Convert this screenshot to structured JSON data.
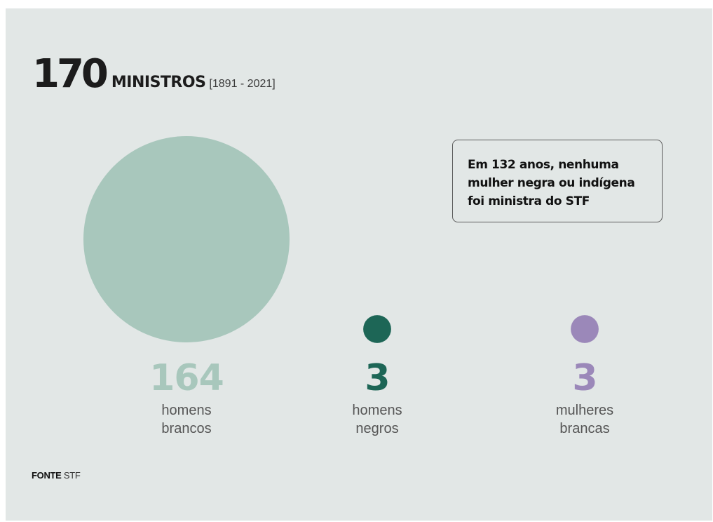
{
  "header": {
    "total": "170",
    "word": "MINISTROS",
    "period": "[1891 - 2021]"
  },
  "note": "Em 132 anos, nenhuma\nmulher negra ou indígena\nfoi ministra do STF",
  "source": {
    "label": "FONTE",
    "value": "STF"
  },
  "chart_data": {
    "type": "bubble",
    "title": "170 MINISTROS [1891 - 2021]",
    "total": 170,
    "categories": [
      "homens brancos",
      "homens negros",
      "mulheres brancas"
    ],
    "series": [
      {
        "label": "homens\nbrancos",
        "value": 164,
        "display": "164",
        "color": "#a8c7bc"
      },
      {
        "label": "homens\nnegros",
        "value": 3,
        "display": "3",
        "color": "#1d6656"
      },
      {
        "label": "mulheres\nbrancas",
        "value": 3,
        "display": "3",
        "color": "#9b88b9"
      }
    ]
  }
}
